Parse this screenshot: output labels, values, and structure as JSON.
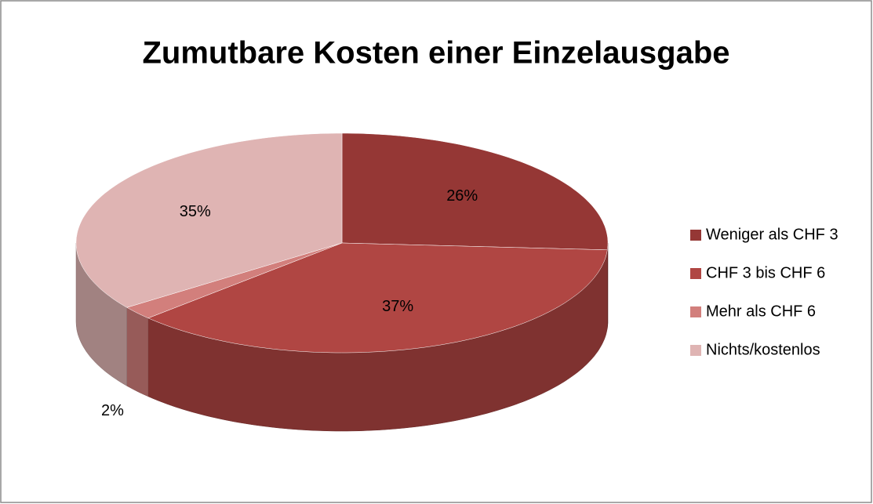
{
  "chart_data": {
    "type": "pie",
    "title": "Zumutbare Kosten einer Einzelausgabe",
    "categories": [
      "Weniger als CHF 3",
      "CHF 3 bis CHF 6",
      "Mehr als CHF 6",
      "Nichts/kostenlos"
    ],
    "values": [
      26,
      37,
      2,
      35
    ],
    "value_labels": [
      "26%",
      "37%",
      "2%",
      "35%"
    ],
    "colors": [
      "#953735",
      "#b04643",
      "#d27f7c",
      "#dfb4b3"
    ],
    "legend": "right"
  }
}
